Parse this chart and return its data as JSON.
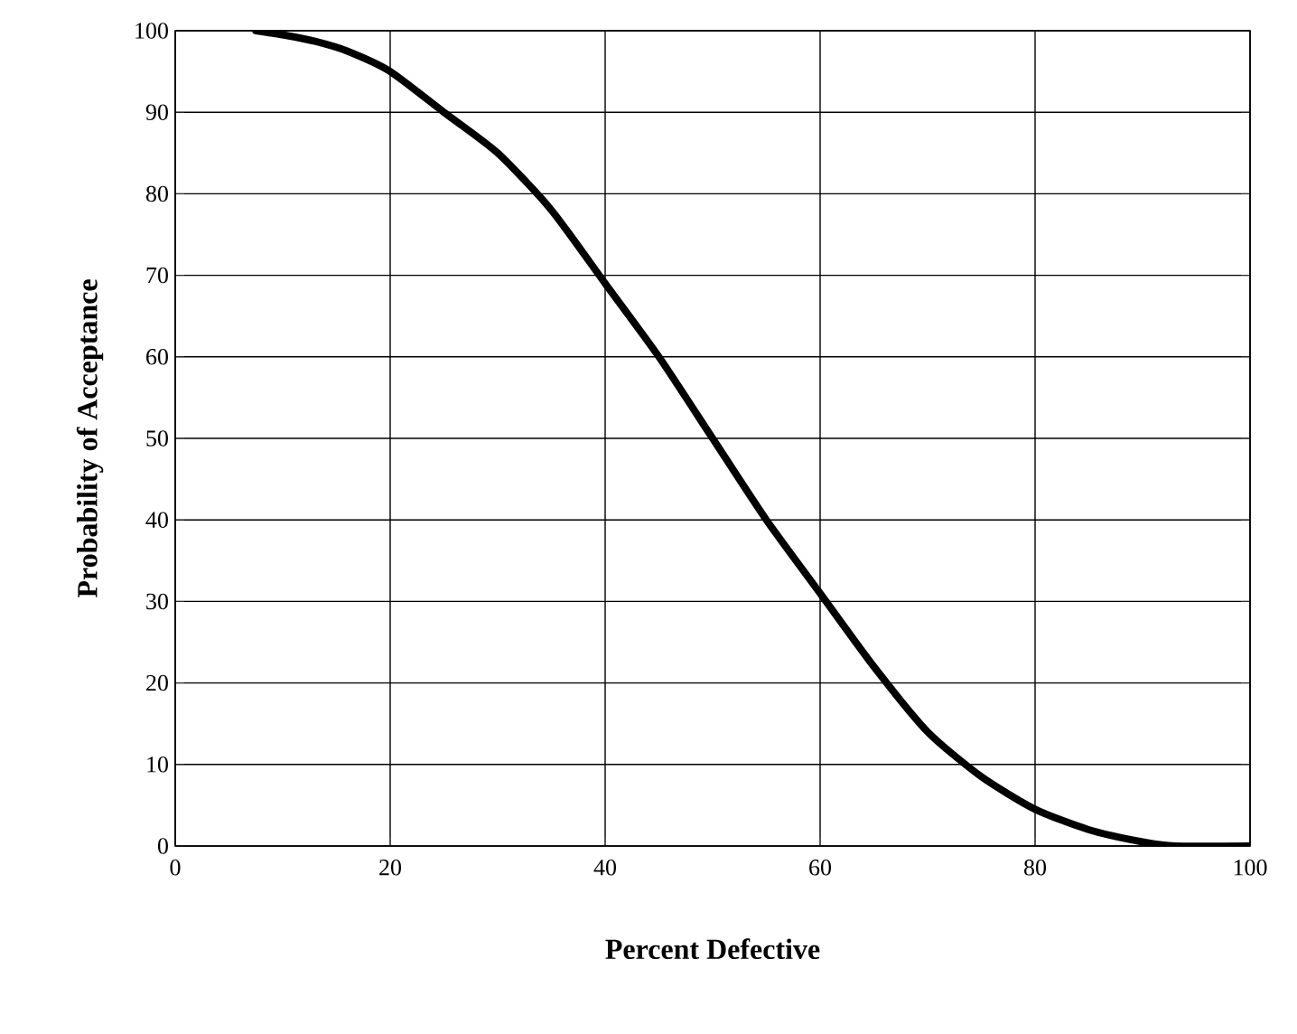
{
  "chart_data": {
    "type": "line",
    "xlabel": "Percent Defective",
    "ylabel": "Probability of Acceptance",
    "x": [
      7.5,
      10,
      13,
      16,
      20,
      25,
      30,
      35,
      40,
      45,
      50,
      55,
      60,
      65,
      70,
      75,
      80,
      85,
      90,
      93,
      100
    ],
    "series": [
      {
        "color": "#000000",
        "values": [
          100,
          99.5,
          98.7,
          97.5,
          95,
          90,
          85,
          78,
          69,
          60,
          50,
          40,
          31,
          22,
          14,
          8.5,
          4.5,
          2,
          0.5,
          0,
          0
        ]
      }
    ],
    "xlim": [
      0,
      100
    ],
    "ylim": [
      0,
      100
    ],
    "xticks": [
      0,
      20,
      40,
      60,
      80,
      100
    ],
    "yticks": [
      0,
      10,
      20,
      30,
      40,
      50,
      60,
      70,
      80,
      90,
      100
    ],
    "grid": true,
    "marker": "none",
    "line_style": "solid"
  }
}
